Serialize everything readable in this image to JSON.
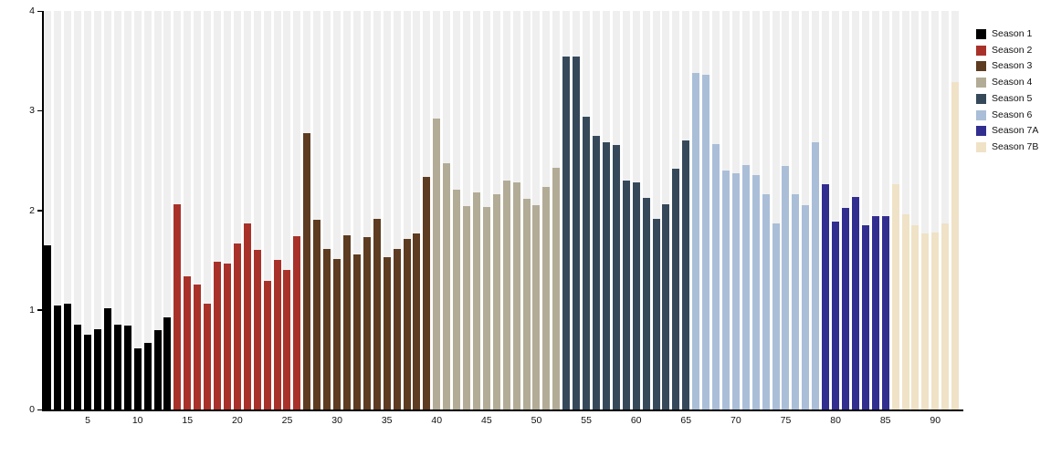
{
  "chart_data": {
    "type": "bar",
    "title": "",
    "xlabel": "",
    "ylabel": "",
    "ylim": [
      0,
      4
    ],
    "yticks": [
      0,
      1,
      2,
      3,
      4
    ],
    "xticks": [
      5,
      10,
      15,
      20,
      25,
      30,
      35,
      40,
      45,
      50,
      55,
      60,
      65,
      70,
      75,
      80,
      85,
      90
    ],
    "x_range": [
      1,
      92
    ],
    "grid": "vertical-background-stripes",
    "stripe_color": "#efefef",
    "legend_position": "outside-top-right",
    "series": [
      {
        "name": "Season 1",
        "color": "#000000",
        "episode_range": "1-13",
        "values": [
          1.65,
          1.04,
          1.06,
          0.85,
          0.75,
          0.81,
          1.02,
          0.85,
          0.84,
          0.61,
          0.67,
          0.8,
          0.92
        ]
      },
      {
        "name": "Season 2",
        "color": "#a8322a",
        "episode_range": "14-26",
        "values": [
          2.06,
          1.34,
          1.25,
          1.06,
          1.48,
          1.46,
          1.67,
          1.87,
          1.6,
          1.29,
          1.5,
          1.4,
          1.74
        ]
      },
      {
        "name": "Season 3",
        "color": "#5d3c21",
        "episode_range": "27-39",
        "values": [
          2.77,
          1.9,
          1.61,
          1.51,
          1.75,
          1.56,
          1.73,
          1.91,
          1.53,
          1.61,
          1.71,
          1.77,
          2.33
        ]
      },
      {
        "name": "Season 4",
        "color": "#b2ab96",
        "episode_range": "40-52",
        "values": [
          2.92,
          2.47,
          2.21,
          2.04,
          2.18,
          2.03,
          2.16,
          2.3,
          2.28,
          2.11,
          2.05,
          2.23,
          2.43
        ]
      },
      {
        "name": "Season 5",
        "color": "#36495b",
        "episode_range": "53-65",
        "values": [
          3.54,
          3.54,
          2.94,
          2.75,
          2.68,
          2.65,
          2.3,
          2.28,
          2.12,
          1.91,
          2.06,
          2.42,
          2.7
        ]
      },
      {
        "name": "Season 6",
        "color": "#aabed8",
        "episode_range": "66-78",
        "values": [
          3.38,
          3.36,
          2.66,
          2.4,
          2.37,
          2.45,
          2.35,
          2.16,
          1.87,
          2.44,
          2.16,
          2.05,
          2.68
        ]
      },
      {
        "name": "Season 7A",
        "color": "#312e90",
        "episode_range": "79-85",
        "values": [
          2.26,
          1.89,
          2.02,
          2.13,
          1.85,
          1.94,
          1.94
        ]
      },
      {
        "name": "Season 7B",
        "color": "#efe2c6",
        "episode_range": "86-92",
        "values": [
          2.26,
          1.96,
          1.85,
          1.77,
          1.78,
          1.87,
          3.29
        ]
      }
    ]
  }
}
